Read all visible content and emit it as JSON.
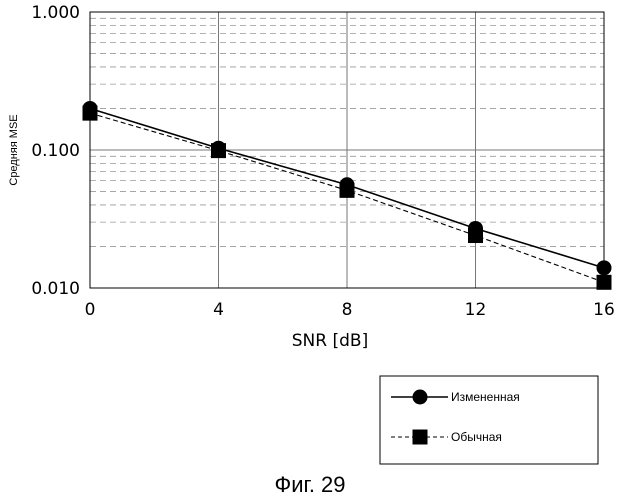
{
  "chart_data": {
    "type": "line",
    "title": "",
    "xlabel": "SNR [dB]",
    "ylabel": "Средняя MSE",
    "x": [
      0,
      4,
      8,
      12,
      16
    ],
    "xticks": [
      "0",
      "4",
      "8",
      "12",
      "16"
    ],
    "xlim": [
      0,
      16
    ],
    "yscale": "log",
    "ylim": [
      0.01,
      1.0
    ],
    "yticks": [
      "0.010",
      "0.100",
      "1.000"
    ],
    "grid": true,
    "legend_position": "bottom-right",
    "series": [
      {
        "name": "Измененная",
        "values": [
          0.2,
          0.103,
          0.056,
          0.027,
          0.014
        ],
        "marker": "circle",
        "line": "solid",
        "color": "#000000"
      },
      {
        "name": "Обычная",
        "values": [
          0.185,
          0.099,
          0.051,
          0.024,
          0.011
        ],
        "marker": "square",
        "line": "dashed",
        "color": "#000000"
      }
    ],
    "caption": "Фиг. 29"
  }
}
